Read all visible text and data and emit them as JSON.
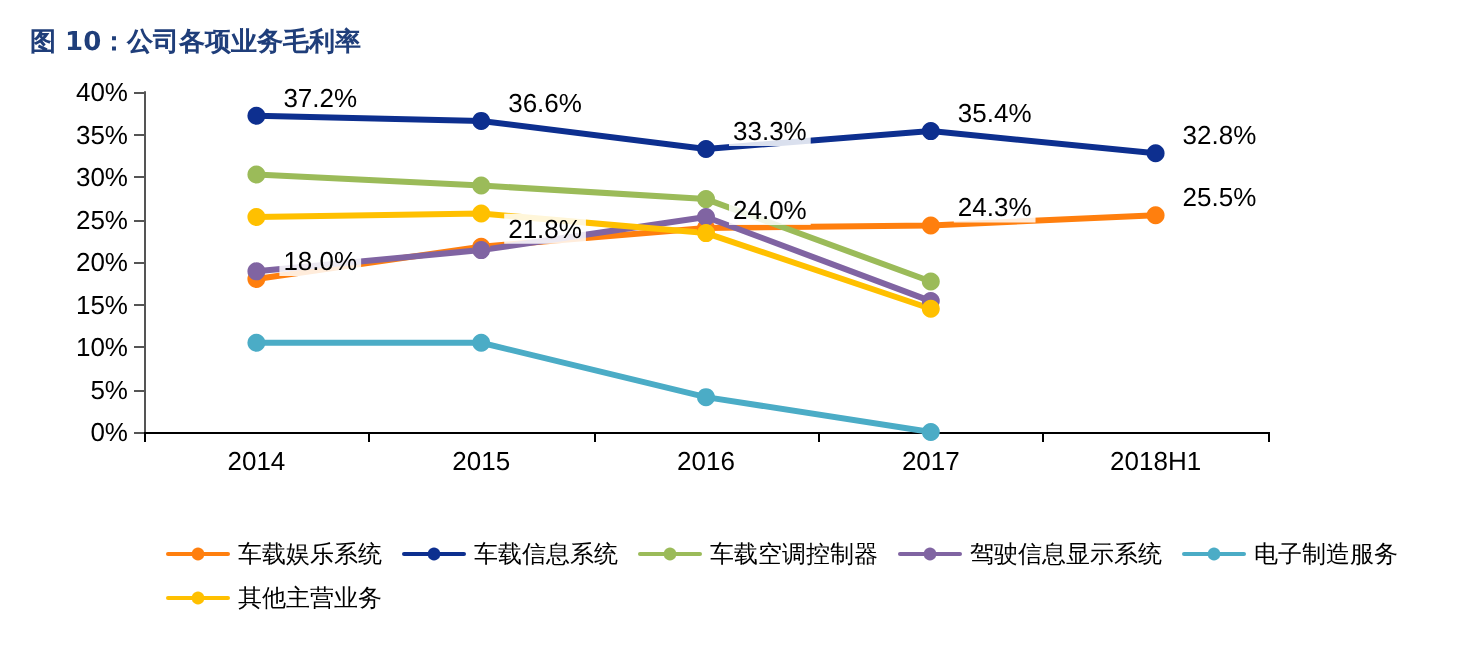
{
  "chart_data": {
    "type": "line",
    "title": "图 10：公司各项业务毛利率",
    "categories": [
      "2014",
      "2015",
      "2016",
      "2017",
      "2018H1"
    ],
    "series": [
      {
        "name": "车载娱乐系统",
        "color": "#ff7f0e",
        "values": [
          18.0,
          21.8,
          24.0,
          24.3,
          25.5
        ],
        "value_labels": [
          "18.0%",
          "21.8%",
          "24.0%",
          "24.3%",
          "25.5%"
        ]
      },
      {
        "name": "车载信息系统",
        "color": "#0d2f8f",
        "values": [
          37.2,
          36.6,
          33.3,
          35.4,
          32.8
        ],
        "value_labels": [
          "37.2%",
          "36.6%",
          "33.3%",
          "35.4%",
          "32.8%"
        ]
      },
      {
        "name": "车载空调控制器",
        "color": "#9bbb59",
        "values": [
          30.3,
          29.0,
          27.4,
          17.7,
          null
        ]
      },
      {
        "name": "驾驶信息显示系统",
        "color": "#8064a2",
        "values": [
          18.9,
          21.4,
          25.3,
          15.4,
          null
        ]
      },
      {
        "name": "电子制造服务",
        "color": "#4bacc6",
        "values": [
          10.5,
          10.5,
          4.1,
          0,
          null
        ]
      },
      {
        "name": "其他主营业务",
        "color": "#ffc000",
        "values": [
          25.3,
          25.7,
          23.4,
          14.5,
          null
        ]
      }
    ],
    "ylim": [
      0,
      40
    ],
    "yticks": [
      {
        "value": 0,
        "label": "0%"
      },
      {
        "value": 5,
        "label": "5%"
      },
      {
        "value": 10,
        "label": "10%"
      },
      {
        "value": 15,
        "label": "15%"
      },
      {
        "value": 20,
        "label": "20%"
      },
      {
        "value": 25,
        "label": "25%"
      },
      {
        "value": 30,
        "label": "30%"
      },
      {
        "value": 35,
        "label": "35%"
      },
      {
        "value": 40,
        "label": "40%"
      }
    ],
    "grid": false,
    "legend": "bottom",
    "marker": "circle",
    "line_style": "solid"
  }
}
